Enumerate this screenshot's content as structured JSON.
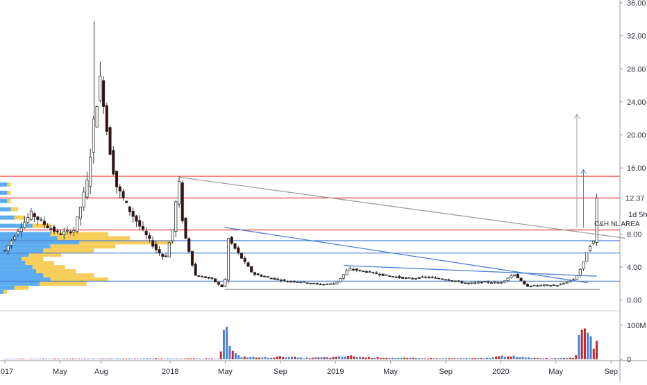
{
  "chart_data": {
    "type": "candlestick",
    "price_axis": {
      "ylim": [
        -1.2,
        36.0
      ],
      "ticks": [
        {
          "v": 36,
          "label": "36.00"
        },
        {
          "v": 32,
          "label": "32.00"
        },
        {
          "v": 28,
          "label": "28.00"
        },
        {
          "v": 24,
          "label": "24.00"
        },
        {
          "v": 20,
          "label": "20.00"
        },
        {
          "v": 16,
          "label": "16.00"
        },
        {
          "v": 8,
          "label": "8.00"
        },
        {
          "v": 4,
          "label": "4.00"
        },
        {
          "v": 0,
          "label": "0.00"
        }
      ],
      "last_price": {
        "v": 12.37,
        "label": "12.37"
      },
      "countdown": {
        "v": 10.4,
        "label": "1d 5h"
      }
    },
    "volume_axis": {
      "ylim": [
        0,
        130
      ],
      "ticks": [
        {
          "v": 100,
          "label": "100M"
        },
        {
          "v": 0,
          "label": "0"
        }
      ]
    },
    "time_axis": {
      "range": [
        2017.0,
        2020.75
      ],
      "ticks": [
        {
          "t": 2017.0,
          "label": "2017"
        },
        {
          "t": 2017.333,
          "label": "May"
        },
        {
          "t": 2017.583,
          "label": "Aug"
        },
        {
          "t": 2018.0,
          "label": "2018"
        },
        {
          "t": 2018.333,
          "label": "May"
        },
        {
          "t": 2018.667,
          "label": "Sep"
        },
        {
          "t": 2019.0,
          "label": "2019"
        },
        {
          "t": 2019.333,
          "label": "May"
        },
        {
          "t": 2019.667,
          "label": "Sep"
        },
        {
          "t": 2020.0,
          "label": "2020"
        },
        {
          "t": 2020.333,
          "label": "May"
        },
        {
          "t": 2020.667,
          "label": "Sep"
        }
      ]
    },
    "horizontal_levels": [
      {
        "v": 15.0,
        "color": "#e53935"
      },
      {
        "v": 12.37,
        "color": "#e53935"
      },
      {
        "v": 8.5,
        "color": "#e53935"
      },
      {
        "v": 7.2,
        "color": "#4a7fd6"
      },
      {
        "v": 5.7,
        "color": "#4a7fd6"
      },
      {
        "v": 2.3,
        "color": "#4a7fd6"
      }
    ],
    "trend_lines": [
      {
        "t1": 2018.05,
        "v1": 14.9,
        "t2": 2020.75,
        "v2": 7.5,
        "color": "#9e9e9e"
      },
      {
        "t1": 2018.33,
        "v1": 8.8,
        "t2": 2020.53,
        "v2": 2.1,
        "color": "#4a7fd6"
      },
      {
        "t1": 2019.05,
        "v1": 4.2,
        "t2": 2020.58,
        "v2": 2.9,
        "color": "#4a7fd6"
      },
      {
        "t1": 2018.33,
        "v1": 1.3,
        "t2": 2020.6,
        "v2": 1.3,
        "color": "#9e9e9e"
      }
    ],
    "arrows": [
      {
        "t": 2020.46,
        "v1": 8.8,
        "v2": 22.5,
        "color": "#9e9e9e"
      },
      {
        "t": 2020.5,
        "v1": 8.8,
        "v2": 15.8,
        "color": "#4a7fd6"
      }
    ],
    "annotations": [
      {
        "t": 2020.565,
        "v": 9.2,
        "text": "C&H NL AREA"
      }
    ],
    "volume_profile": [
      {
        "v": 14.0,
        "up": 2,
        "down": 1
      },
      {
        "v": 13.0,
        "up": 2,
        "down": 1
      },
      {
        "v": 12.0,
        "up": 2,
        "down": 1
      },
      {
        "v": 11.0,
        "up": 3,
        "down": 2
      },
      {
        "v": 10.0,
        "up": 4,
        "down": 3
      },
      {
        "v": 9.0,
        "up": 9,
        "down": 5
      },
      {
        "v": 8.0,
        "up": 14,
        "down": 16
      },
      {
        "v": 7.5,
        "up": 16,
        "down": 20
      },
      {
        "v": 7.0,
        "up": 22,
        "down": 26
      },
      {
        "v": 6.5,
        "up": 14,
        "down": 18
      },
      {
        "v": 6.0,
        "up": 12,
        "down": 14
      },
      {
        "v": 5.5,
        "up": 8,
        "down": 9
      },
      {
        "v": 5.0,
        "up": 6,
        "down": 6
      },
      {
        "v": 4.5,
        "up": 7,
        "down": 8
      },
      {
        "v": 4.0,
        "up": 9,
        "down": 9
      },
      {
        "v": 3.5,
        "up": 10,
        "down": 11
      },
      {
        "v": 3.0,
        "up": 12,
        "down": 14
      },
      {
        "v": 2.5,
        "up": 14,
        "down": 16
      },
      {
        "v": 2.0,
        "up": 11,
        "down": 13
      },
      {
        "v": 1.5,
        "up": 4,
        "down": 4
      },
      {
        "v": 1.0,
        "up": 1,
        "down": 1
      }
    ],
    "colors": {
      "up": "#ffffff",
      "down": "#3b0a0a",
      "wick": "#333333",
      "vol_up": "#4a7fd6",
      "vol_down": "#c62828",
      "profile_up": "#4aa3f0",
      "profile_down": "#f7c948"
    },
    "price_path": [
      [
        2017.0,
        6.0
      ],
      [
        2017.08,
        8.5
      ],
      [
        2017.16,
        10.5
      ],
      [
        2017.25,
        9.0
      ],
      [
        2017.33,
        8.0
      ],
      [
        2017.42,
        8.5
      ],
      [
        2017.5,
        14.5
      ],
      [
        2017.54,
        22.0
      ],
      [
        2017.58,
        27.0
      ],
      [
        2017.62,
        20.0
      ],
      [
        2017.67,
        14.0
      ],
      [
        2017.75,
        11.0
      ],
      [
        2017.83,
        8.5
      ],
      [
        2017.92,
        6.0
      ],
      [
        2017.97,
        5.0
      ],
      [
        2018.02,
        9.0
      ],
      [
        2018.05,
        14.9
      ],
      [
        2018.08,
        8.5
      ],
      [
        2018.12,
        5.5
      ],
      [
        2018.15,
        3.0
      ],
      [
        2018.25,
        2.6
      ],
      [
        2018.31,
        1.6
      ],
      [
        2018.33,
        1.8
      ],
      [
        2018.35,
        7.5
      ],
      [
        2018.4,
        6.0
      ],
      [
        2018.5,
        3.2
      ],
      [
        2018.6,
        2.7
      ],
      [
        2018.7,
        2.3
      ],
      [
        2018.8,
        2.2
      ],
      [
        2018.9,
        1.9
      ],
      [
        2019.0,
        2.0
      ],
      [
        2019.08,
        3.8
      ],
      [
        2019.17,
        3.5
      ],
      [
        2019.25,
        3.2
      ],
      [
        2019.33,
        2.9
      ],
      [
        2019.45,
        2.6
      ],
      [
        2019.55,
        2.8
      ],
      [
        2019.67,
        2.5
      ],
      [
        2019.8,
        2.0
      ],
      [
        2019.9,
        2.2
      ],
      [
        2020.0,
        2.1
      ],
      [
        2020.08,
        3.2
      ],
      [
        2020.15,
        1.7
      ],
      [
        2020.25,
        1.8
      ],
      [
        2020.35,
        1.8
      ],
      [
        2020.45,
        2.6
      ],
      [
        2020.5,
        4.5
      ],
      [
        2020.53,
        6.5
      ],
      [
        2020.56,
        7.0
      ],
      [
        2020.58,
        12.37
      ]
    ],
    "volume_path": [
      [
        2017.0,
        1.5
      ],
      [
        2017.5,
        2.0
      ],
      [
        2018.0,
        2.5
      ],
      [
        2018.3,
        2.0
      ],
      [
        2018.33,
        130
      ],
      [
        2018.35,
        55
      ],
      [
        2018.38,
        20
      ],
      [
        2018.42,
        8
      ],
      [
        2018.55,
        5
      ],
      [
        2018.7,
        8
      ],
      [
        2018.8,
        4
      ],
      [
        2019.0,
        6
      ],
      [
        2019.08,
        10
      ],
      [
        2019.17,
        6
      ],
      [
        2019.4,
        4
      ],
      [
        2019.6,
        3
      ],
      [
        2019.9,
        3
      ],
      [
        2020.05,
        12
      ],
      [
        2020.1,
        6
      ],
      [
        2020.3,
        3
      ],
      [
        2020.45,
        6
      ],
      [
        2020.5,
        115
      ],
      [
        2020.53,
        85
      ],
      [
        2020.56,
        40
      ],
      [
        2020.58,
        48
      ]
    ]
  }
}
